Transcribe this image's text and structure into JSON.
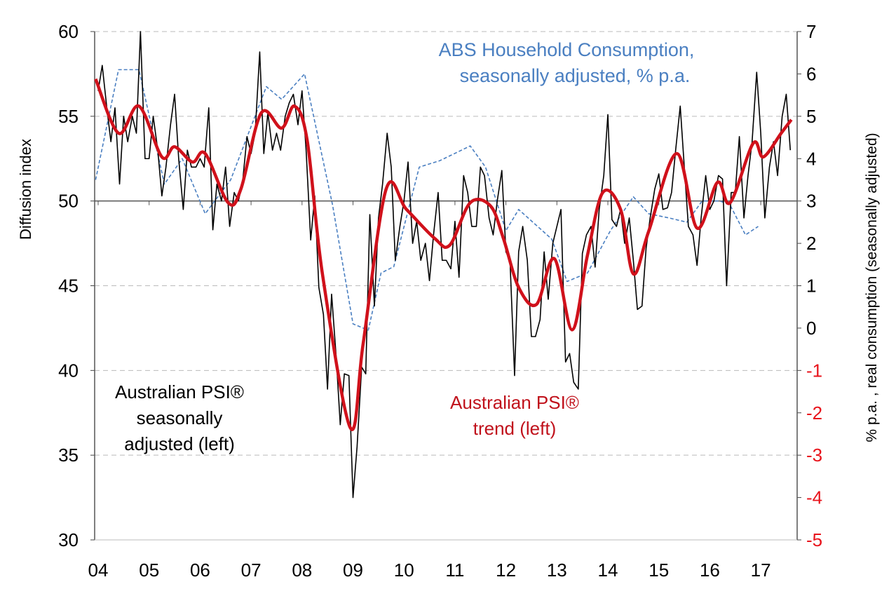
{
  "chart_data": {
    "type": "line",
    "title": "",
    "ylabel_left": "Diffusion index",
    "ylabel_right": "% p.a. , real consumption (seasonally adjusted)",
    "ylim_left": [
      30,
      60
    ],
    "ylim_right": [
      -5,
      7
    ],
    "yticks_left": [
      "30",
      "35",
      "40",
      "45",
      "50",
      "55",
      "60"
    ],
    "yticks_right": [
      "-5",
      "-4",
      "-3",
      "-2",
      "-1",
      "0",
      "1",
      "2",
      "3",
      "4",
      "5",
      "6",
      "7"
    ],
    "xticks": [
      "04",
      "05",
      "06",
      "07",
      "08",
      "09",
      "10",
      "11",
      "12",
      "13",
      "14",
      "15",
      "16",
      "17"
    ],
    "grid": true,
    "colors": {
      "sa": "#000000",
      "trend": "#d0111b",
      "consumption": "#4a7fc1",
      "negative_ticks": "#e8141c"
    },
    "annotations": {
      "consumption": [
        "ABS Household Consumption,",
        "seasonally adjusted, % p.a."
      ],
      "sa": [
        "Australian PSI®",
        "seasonally",
        "adjusted (left)"
      ],
      "trend": [
        "Australian PSI®",
        "trend (left)"
      ]
    },
    "series": [
      {
        "key": "sa",
        "axis": "left",
        "x": [
          2004.0,
          2004.08,
          2004.17,
          2004.25,
          2004.33,
          2004.42,
          2004.5,
          2004.58,
          2004.67,
          2004.75,
          2004.83,
          2004.92,
          2005.0,
          2005.08,
          2005.17,
          2005.25,
          2005.33,
          2005.42,
          2005.5,
          2005.58,
          2005.67,
          2005.75,
          2005.83,
          2005.92,
          2006.0,
          2006.08,
          2006.17,
          2006.25,
          2006.33,
          2006.42,
          2006.5,
          2006.58,
          2006.67,
          2006.75,
          2006.83,
          2006.92,
          2007.0,
          2007.08,
          2007.17,
          2007.25,
          2007.33,
          2007.42,
          2007.5,
          2007.58,
          2007.67,
          2007.75,
          2007.83,
          2007.92,
          2008.0,
          2008.08,
          2008.17,
          2008.25,
          2008.33,
          2008.42,
          2008.5,
          2008.58,
          2008.67,
          2008.75,
          2008.83,
          2008.92,
          2009.0,
          2009.08,
          2009.17,
          2009.25,
          2009.33,
          2009.42,
          2009.5,
          2009.58,
          2009.67,
          2009.75,
          2009.83,
          2009.92,
          2010.0,
          2010.08,
          2010.17,
          2010.25,
          2010.33,
          2010.42,
          2010.5,
          2010.58,
          2010.67,
          2010.75,
          2010.83,
          2010.92,
          2011.0,
          2011.08,
          2011.17,
          2011.25,
          2011.33,
          2011.42,
          2011.5,
          2011.58,
          2011.67,
          2011.75,
          2011.83,
          2011.92,
          2012.0,
          2012.08,
          2012.17,
          2012.25,
          2012.33,
          2012.42,
          2012.5,
          2012.58,
          2012.67,
          2012.75,
          2012.83,
          2012.92,
          2013.0,
          2013.08,
          2013.17,
          2013.25,
          2013.33,
          2013.42,
          2013.5,
          2013.58,
          2013.67,
          2013.75,
          2013.83,
          2013.92,
          2014.0,
          2014.08,
          2014.17,
          2014.25,
          2014.33,
          2014.42,
          2014.5,
          2014.58,
          2014.67,
          2014.75,
          2014.83,
          2014.92,
          2015.0,
          2015.08,
          2015.17,
          2015.25,
          2015.33,
          2015.42,
          2015.5,
          2015.58,
          2015.67,
          2015.75,
          2015.83,
          2015.92,
          2016.0,
          2016.08,
          2016.17,
          2016.25,
          2016.33,
          2016.42,
          2016.5,
          2016.58,
          2016.67,
          2016.75,
          2016.83,
          2016.92,
          2017.0,
          2017.08,
          2017.17,
          2017.25,
          2017.33,
          2017.42,
          2017.5,
          2017.58
        ],
        "y": [
          56.5,
          58.0,
          55.5,
          53.5,
          55.5,
          51.0,
          55.0,
          53.5,
          55.0,
          54.0,
          60.0,
          52.5,
          52.5,
          55.0,
          53.0,
          50.3,
          52.0,
          54.5,
          56.3,
          52.5,
          49.5,
          53.0,
          52.0,
          52.0,
          52.5,
          52.0,
          55.5,
          48.3,
          51.0,
          50.0,
          52.0,
          48.5,
          50.5,
          50.0,
          51.0,
          53.8,
          52.8,
          54.0,
          58.8,
          52.8,
          55.2,
          53.0,
          54.0,
          53.0,
          55.0,
          55.8,
          56.3,
          54.5,
          56.5,
          53.0,
          47.7,
          50.3,
          44.9,
          43.3,
          38.9,
          44.5,
          40.8,
          36.8,
          39.8,
          39.7,
          32.5,
          35.5,
          40.2,
          39.8,
          49.2,
          43.8,
          49.0,
          51.0,
          54.0,
          52.0,
          46.5,
          48.5,
          50.0,
          52.3,
          47.5,
          48.8,
          46.5,
          47.5,
          45.3,
          48.0,
          50.5,
          46.5,
          46.5,
          46.0,
          48.8,
          45.5,
          51.5,
          50.5,
          48.5,
          48.5,
          52.0,
          51.5,
          49.0,
          48.0,
          50.0,
          51.8,
          47.0,
          46.5,
          39.7,
          47.0,
          48.5,
          46.5,
          42.0,
          42.0,
          43.0,
          47.0,
          44.2,
          47.5,
          48.5,
          49.5,
          40.5,
          41.0,
          39.3,
          38.9,
          46.9,
          48.0,
          48.5,
          46.1,
          49.5,
          51.5,
          55.1,
          48.9,
          48.5,
          49.5,
          47.5,
          49.0,
          46.5,
          43.6,
          43.8,
          47.2,
          49.0,
          50.7,
          51.6,
          49.5,
          49.6,
          50.5,
          53.0,
          55.6,
          52.0,
          48.5,
          48.0,
          46.2,
          49.0,
          51.5,
          49.5,
          50.0,
          51.5,
          51.3,
          45.0,
          50.5,
          50.5,
          53.8,
          49.0,
          51.5,
          53.5,
          57.6,
          54.0,
          49.0,
          52.0,
          53.5,
          51.5,
          55.0,
          56.3,
          53.0
        ]
      },
      {
        "key": "trend",
        "axis": "left",
        "x": [
          2003.95,
          2004.4,
          2004.8,
          2005.25,
          2005.5,
          2005.85,
          2006.1,
          2006.55,
          2006.8,
          2007.2,
          2007.6,
          2007.85,
          2008.1,
          2008.4,
          2008.95,
          2009.2,
          2009.65,
          2010.05,
          2010.6,
          2010.9,
          2011.3,
          2011.7,
          2011.95,
          2012.25,
          2012.6,
          2012.95,
          2013.3,
          2013.6,
          2013.9,
          2014.25,
          2014.5,
          2014.8,
          2015.35,
          2015.75,
          2016.15,
          2016.4,
          2016.85,
          2017.05,
          2017.4,
          2017.6
        ],
        "y": [
          57.2,
          54.0,
          55.6,
          52.6,
          53.2,
          52.3,
          52.8,
          49.9,
          50.7,
          55.2,
          54.3,
          55.6,
          53.6,
          45.7,
          36.6,
          41.6,
          50.7,
          49.5,
          47.8,
          47.4,
          49.9,
          49.7,
          47.8,
          44.9,
          43.9,
          46.6,
          42.4,
          46.8,
          50.5,
          49.5,
          45.7,
          48.2,
          52.8,
          48.4,
          51.1,
          49.9,
          53.4,
          52.6,
          54.0,
          54.8
        ]
      },
      {
        "key": "consumption",
        "axis": "right",
        "x": [
          2003.95,
          2004.4,
          2004.8,
          2005.3,
          2005.65,
          2006.1,
          2006.6,
          2007.3,
          2007.6,
          2008.05,
          2008.6,
          2009.0,
          2009.3,
          2009.55,
          2009.8,
          2010.3,
          2010.7,
          2011.3,
          2011.6,
          2012.0,
          2012.25,
          2012.9,
          2013.2,
          2013.6,
          2014.05,
          2014.5,
          2014.8,
          2015.2,
          2015.55,
          2015.85,
          2016.2,
          2016.4,
          2016.7,
          2016.95
        ],
        "y": [
          3.5,
          6.1,
          6.1,
          3.4,
          4.0,
          2.7,
          3.5,
          5.7,
          5.4,
          6.0,
          2.9,
          0.1,
          -0.05,
          1.3,
          1.45,
          3.8,
          3.95,
          4.3,
          3.8,
          2.3,
          2.8,
          2.1,
          1.1,
          1.3,
          2.3,
          3.1,
          2.7,
          2.6,
          2.5,
          3.0,
          3.0,
          2.9,
          2.2,
          2.4
        ]
      }
    ]
  }
}
